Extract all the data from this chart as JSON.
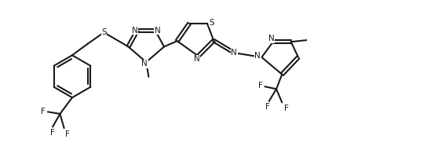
{
  "bg": "#ffffff",
  "lc": "#1a1a1a",
  "lw": 1.5,
  "fs": 7.5,
  "figsize": [
    5.44,
    2.1
  ],
  "dpi": 100,
  "xlim": [
    0.05,
    10.3
  ],
  "ylim": [
    0.0,
    4.0
  ]
}
